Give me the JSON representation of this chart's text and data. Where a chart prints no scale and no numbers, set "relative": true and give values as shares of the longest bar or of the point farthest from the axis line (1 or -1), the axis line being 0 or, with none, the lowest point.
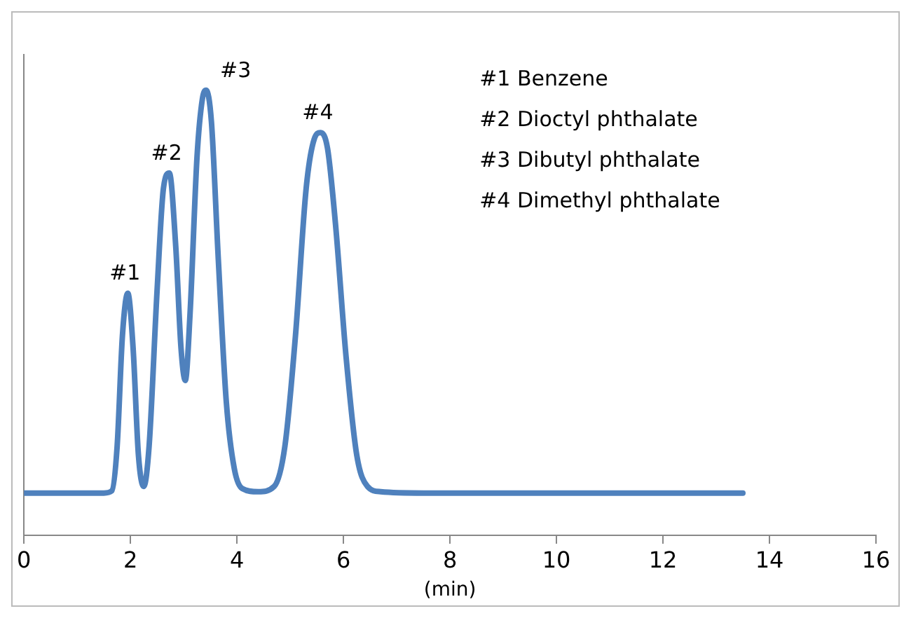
{
  "chart_data": {
    "type": "line",
    "relative": true,
    "xlabel": "(min)",
    "xlim": [
      0,
      16
    ],
    "xticks": [
      0,
      2,
      4,
      6,
      8,
      10,
      12,
      14,
      16
    ],
    "grid": false,
    "legend": false,
    "marker": "none",
    "line_style": "solid",
    "series": [
      {
        "color": "#4f81bd",
        "x": [
          0,
          1.5,
          1.65,
          1.75,
          1.85,
          1.95,
          2.05,
          2.15,
          2.25,
          2.35,
          2.5,
          2.62,
          2.73,
          2.85,
          2.95,
          3.03,
          3.12,
          3.25,
          3.35,
          3.42,
          3.52,
          3.65,
          3.8,
          3.95,
          4.1,
          4.4,
          4.7,
          4.9,
          5.1,
          5.3,
          5.45,
          5.57,
          5.7,
          5.85,
          6.05,
          6.25,
          6.45,
          6.7,
          7.5,
          13.5
        ],
        "values": [
          0.095,
          0.095,
          0.1,
          0.2,
          0.45,
          0.544,
          0.42,
          0.18,
          0.11,
          0.2,
          0.55,
          0.78,
          0.814,
          0.65,
          0.42,
          0.348,
          0.5,
          0.85,
          0.98,
          1.0,
          0.93,
          0.62,
          0.3,
          0.15,
          0.105,
          0.098,
          0.11,
          0.2,
          0.45,
          0.78,
          0.89,
          0.905,
          0.87,
          0.7,
          0.4,
          0.18,
          0.11,
          0.098,
          0.095,
          0.095
        ]
      }
    ],
    "annotations": [
      {
        "text": "#1",
        "x": 1.95,
        "y": 0.544
      },
      {
        "text": "#2",
        "x": 2.73,
        "y": 0.814
      },
      {
        "text": "#3",
        "x": 3.42,
        "y": 1.0
      },
      {
        "text": "#4",
        "x": 5.57,
        "y": 0.905
      },
      "#1 Benzene",
      "#2 Dioctyl phthalate",
      "#3 Dibutyl phthalate",
      "#4 Dimethyl phthalate"
    ]
  }
}
